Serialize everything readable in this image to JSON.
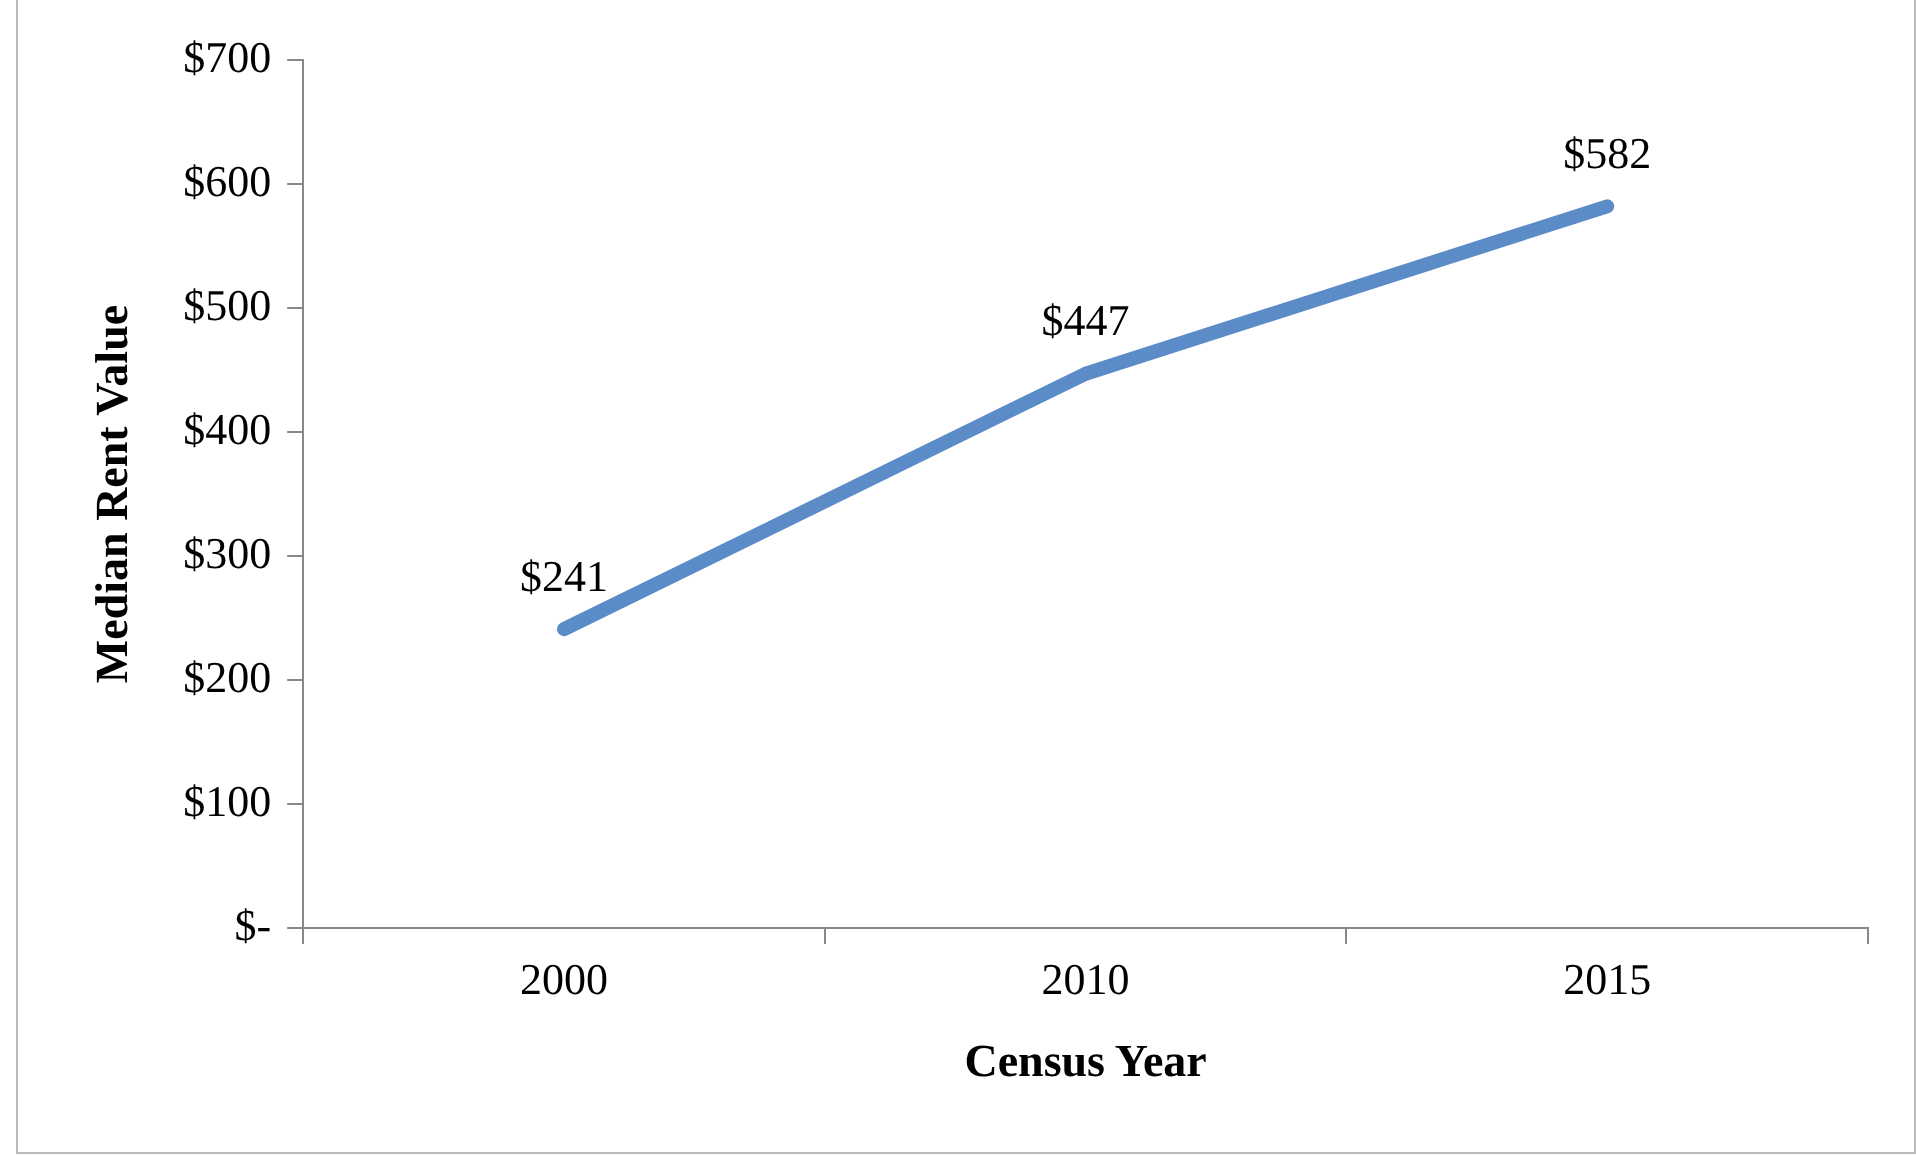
{
  "chart_data": {
    "type": "line",
    "xlabel": "Census Year",
    "ylabel": "Median Rent Value",
    "categories": [
      "2000",
      "2010",
      "2015"
    ],
    "values": [
      241,
      447,
      582
    ],
    "value_labels": [
      "$241",
      "$447",
      "$582"
    ],
    "color": "#5b8cc8",
    "ylim": [
      0,
      700
    ],
    "yticks": [
      {
        "value": 0,
        "label": "$-"
      },
      {
        "value": 100,
        "label": "$100"
      },
      {
        "value": 200,
        "label": "$200"
      },
      {
        "value": 300,
        "label": "$300"
      },
      {
        "value": 400,
        "label": "$400"
      },
      {
        "value": 500,
        "label": "$500"
      },
      {
        "value": 600,
        "label": "$600"
      },
      {
        "value": 700,
        "label": "$700"
      }
    ],
    "grid": false,
    "legend": false
  }
}
